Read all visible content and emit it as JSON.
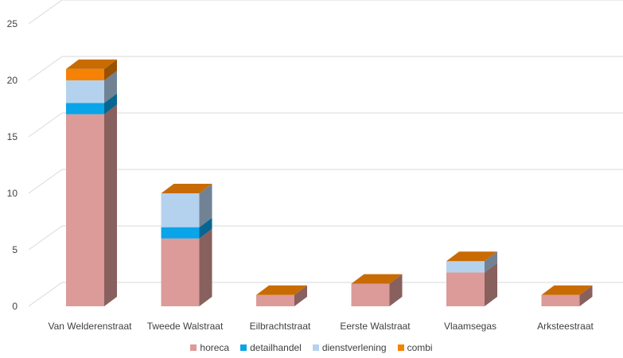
{
  "chart_data": {
    "type": "bar",
    "stacked": true,
    "style": "3d",
    "categories": [
      "Van Welderenstraat",
      "Tweede Walstraat",
      "Eilbrachtstraat",
      "Eerste Walstraat",
      "Vlaamsegas",
      "Arksteestraat"
    ],
    "series": [
      {
        "name": "horeca",
        "color": "#dc9b98",
        "values": [
          17,
          6,
          1,
          2,
          3,
          1
        ]
      },
      {
        "name": "detailhandel",
        "color": "#0aa4e8",
        "values": [
          1,
          1,
          0,
          0,
          0,
          0
        ]
      },
      {
        "name": "dienstverlening",
        "color": "#b4d2ee",
        "values": [
          2,
          3,
          0,
          0,
          1,
          0
        ]
      },
      {
        "name": "combi",
        "color": "#f58204",
        "values": [
          1,
          0,
          0,
          0,
          0,
          0
        ]
      }
    ],
    "ylim": [
      0,
      25
    ],
    "yticks": [
      0,
      5,
      10,
      15,
      20,
      25
    ],
    "grid": true,
    "legend_position": "bottom",
    "title": "",
    "xlabel": "",
    "ylabel": ""
  }
}
